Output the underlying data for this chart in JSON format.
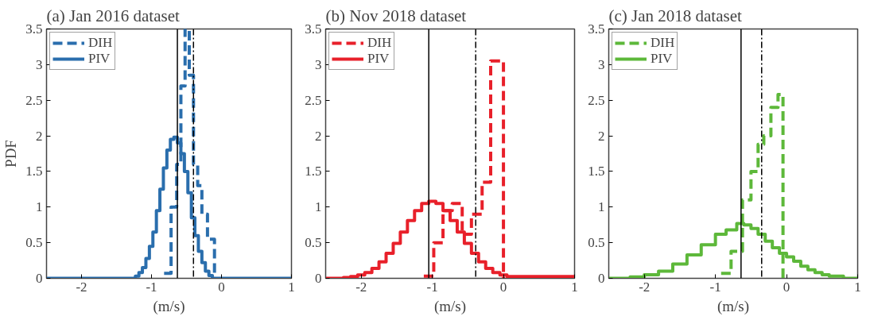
{
  "chart_data": [
    {
      "type": "step",
      "title": "(a) Jan 2016 dataset",
      "xlabel": "(m/s)",
      "ylabel": "PDF",
      "xlim": [
        -2.5,
        1
      ],
      "ylim": [
        0,
        3.5
      ],
      "xticks": [
        -2,
        -1,
        0,
        1
      ],
      "yticks": [
        0,
        0.5,
        1,
        1.5,
        2,
        2.5,
        3,
        3.5
      ],
      "grid": false,
      "legend": "top left",
      "series": [
        {
          "name": "DIH",
          "color": "#2a6ead",
          "line_style": "dashed",
          "x": [
            -0.82,
            -0.72,
            -0.64,
            -0.58,
            -0.52,
            -0.46,
            -0.4,
            -0.34,
            -0.28,
            -0.2,
            -0.1
          ],
          "values": [
            0.07,
            1.0,
            1.6,
            2.7,
            3.5,
            2.85,
            1.6,
            1.3,
            0.9,
            0.55,
            0
          ]
        },
        {
          "name": "PIV",
          "color": "#2a6ead",
          "line_style": "solid",
          "x": [
            -2.5,
            -1.23,
            -1.18,
            -1.13,
            -1.08,
            -1.03,
            -0.98,
            -0.93,
            -0.88,
            -0.83,
            -0.78,
            -0.73,
            -0.68,
            -0.63,
            -0.58,
            -0.53,
            -0.48,
            -0.43,
            -0.38,
            -0.33,
            -0.28,
            -0.23,
            -0.18,
            -0.13,
            -0.08,
            1
          ],
          "values": [
            0,
            0.03,
            0.08,
            0.15,
            0.28,
            0.45,
            0.65,
            0.95,
            1.25,
            1.55,
            1.8,
            1.95,
            1.98,
            1.9,
            1.75,
            1.5,
            1.2,
            0.85,
            0.6,
            0.38,
            0.22,
            0.1,
            0.04,
            0,
            0,
            0
          ]
        }
      ],
      "ref_lines": [
        {
          "axis": "x",
          "value": -0.63,
          "color": "#000000",
          "line_style": "solid"
        },
        {
          "axis": "x",
          "value": -0.4,
          "color": "#000000",
          "line_style": "dashdot"
        }
      ]
    },
    {
      "type": "step",
      "title": "(b) Nov 2018 dataset",
      "xlabel": "(m/s)",
      "xlim": [
        -2.5,
        1
      ],
      "ylim": [
        0,
        3.5
      ],
      "xticks": [
        -2,
        -1,
        0,
        1
      ],
      "yticks": [
        0,
        0.5,
        1,
        1.5,
        2,
        2.5,
        3,
        3.5
      ],
      "grid": false,
      "legend": "top left",
      "series": [
        {
          "name": "DIH",
          "color": "#e8202a",
          "line_style": "dashed",
          "x": [
            -1.12,
            -0.98,
            -0.85,
            -0.72,
            -0.58,
            -0.45,
            -0.3,
            -0.18,
            0.0
          ],
          "values": [
            0.03,
            0.5,
            0.95,
            1.05,
            0.62,
            0.9,
            1.35,
            3.05,
            0
          ]
        },
        {
          "name": "PIV",
          "color": "#e8202a",
          "line_style": "solid",
          "x": [
            -2.5,
            -2.25,
            -2.15,
            -2.05,
            -1.95,
            -1.85,
            -1.75,
            -1.65,
            -1.55,
            -1.45,
            -1.35,
            -1.25,
            -1.15,
            -1.05,
            -0.95,
            -0.85,
            -0.75,
            -0.65,
            -0.55,
            -0.45,
            -0.35,
            -0.25,
            -0.15,
            -0.05,
            0.05,
            1
          ],
          "values": [
            0,
            0.01,
            0.024,
            0.047,
            0.08,
            0.14,
            0.23,
            0.35,
            0.49,
            0.65,
            0.81,
            0.95,
            1.05,
            1.08,
            1.05,
            0.95,
            0.81,
            0.65,
            0.49,
            0.35,
            0.23,
            0.14,
            0.08,
            0.047,
            0.024,
            0
          ]
        }
      ],
      "ref_lines": [
        {
          "axis": "x",
          "value": -1.05,
          "color": "#000000",
          "line_style": "solid"
        },
        {
          "axis": "x",
          "value": -0.39,
          "color": "#000000",
          "line_style": "dashdot"
        }
      ]
    },
    {
      "type": "step",
      "title": "(c) Jan 2018 dataset",
      "xlabel": "(m/s)",
      "xlim": [
        -2.5,
        1
      ],
      "ylim": [
        0,
        3.5
      ],
      "xticks": [
        -2,
        -1,
        0,
        1
      ],
      "yticks": [
        0,
        0.5,
        1,
        1.5,
        2,
        2.5,
        3,
        3.5
      ],
      "grid": false,
      "legend": "top left",
      "series": [
        {
          "name": "DIH",
          "color": "#5db83a",
          "line_style": "dashed",
          "x": [
            -0.92,
            -0.78,
            -0.62,
            -0.5,
            -0.4,
            -0.32,
            -0.22,
            -0.12,
            -0.05
          ],
          "values": [
            0.07,
            0.38,
            1.1,
            1.5,
            1.88,
            2.0,
            2.4,
            2.58,
            0
          ]
        },
        {
          "name": "PIV",
          "color": "#5db83a",
          "line_style": "solid",
          "x": [
            -2.5,
            -2.2,
            -2.0,
            -1.8,
            -1.6,
            -1.4,
            -1.2,
            -1.0,
            -0.85,
            -0.7,
            -0.6,
            -0.5,
            -0.4,
            -0.3,
            -0.2,
            -0.1,
            0.0,
            0.1,
            0.2,
            0.3,
            0.4,
            0.5,
            0.6,
            0.8,
            1
          ],
          "values": [
            0,
            0.02,
            0.05,
            0.1,
            0.2,
            0.33,
            0.47,
            0.62,
            0.68,
            0.77,
            0.75,
            0.7,
            0.62,
            0.52,
            0.43,
            0.35,
            0.3,
            0.24,
            0.17,
            0.12,
            0.08,
            0.05,
            0.03,
            0,
            0
          ]
        }
      ],
      "ref_lines": [
        {
          "axis": "x",
          "value": -0.64,
          "color": "#000000",
          "line_style": "solid"
        },
        {
          "axis": "x",
          "value": -0.35,
          "color": "#000000",
          "line_style": "dashdot"
        }
      ]
    }
  ]
}
